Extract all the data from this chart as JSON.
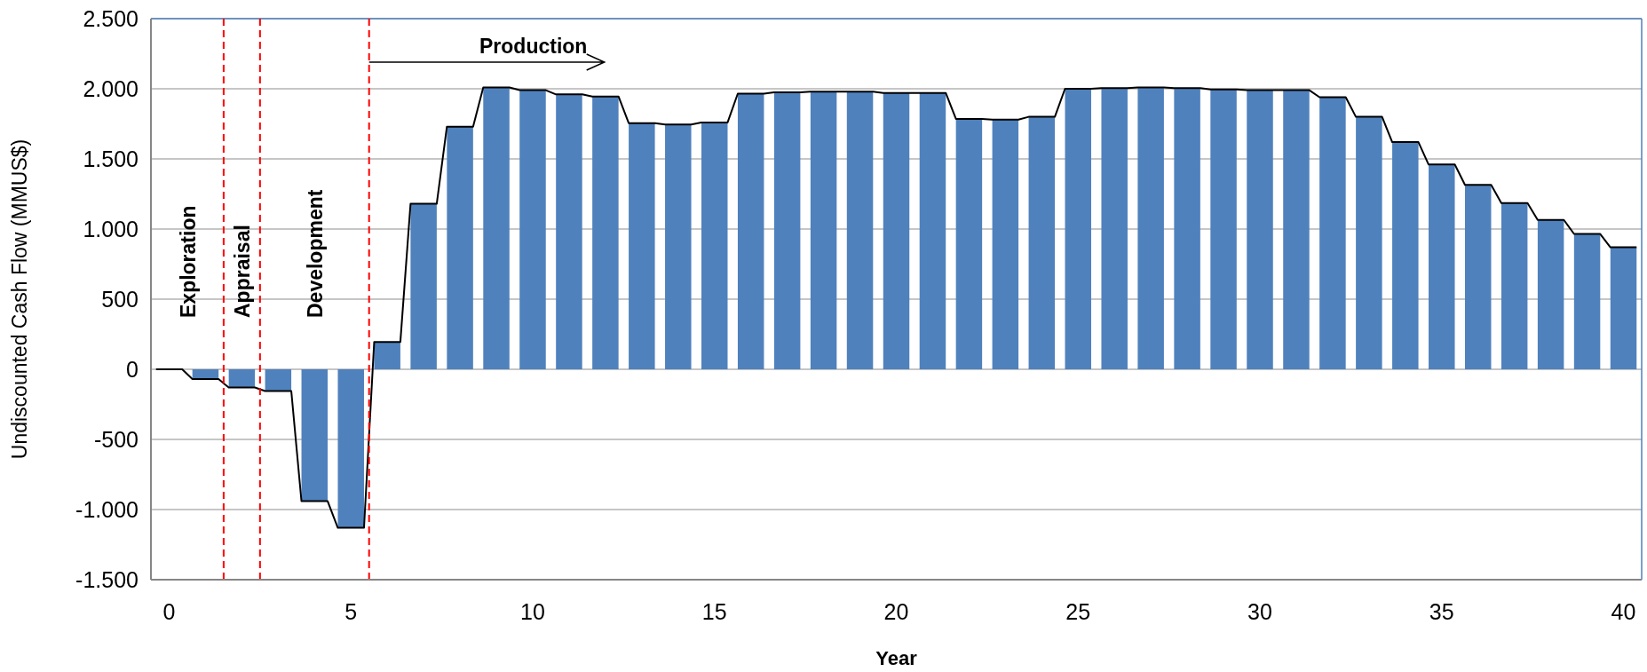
{
  "chart_data": {
    "type": "bar",
    "xlabel": "Year",
    "ylabel": "Undiscounted Cash Flow (MMUS$)",
    "x": [
      0,
      1,
      2,
      3,
      4,
      5,
      6,
      7,
      8,
      9,
      10,
      11,
      12,
      13,
      14,
      15,
      16,
      17,
      18,
      19,
      20,
      21,
      22,
      23,
      24,
      25,
      26,
      27,
      28,
      29,
      30,
      31,
      32,
      33,
      34,
      35,
      36,
      37,
      38,
      39,
      40
    ],
    "series": [
      {
        "color": "#4f81bd",
        "values": [
          0,
          -70,
          -130,
          -155,
          -940,
          -1130,
          195,
          1180,
          1730,
          2010,
          1990,
          1960,
          1945,
          1755,
          1745,
          1760,
          1965,
          1975,
          1980,
          1980,
          1970,
          1970,
          1785,
          1780,
          1800,
          2000,
          2005,
          2010,
          2005,
          1995,
          1990,
          1990,
          1940,
          1800,
          1620,
          1460,
          1315,
          1185,
          1065,
          965,
          870
        ]
      },
      {
        "type": "line",
        "color": "#000000",
        "x": [
          -0.36,
          0.36,
          0.64,
          1.36,
          1.64,
          2.36,
          2.64,
          3.36,
          3.64,
          4.36,
          4.64,
          5.36,
          5.64,
          6.36,
          6.64,
          7.36,
          7.64,
          8.36,
          8.64,
          9.36,
          9.64,
          10.36,
          10.64,
          11.36,
          11.64,
          12.36,
          12.64,
          13.36,
          13.64,
          14.36,
          14.64,
          15.36,
          15.64,
          16.36,
          16.64,
          17.36,
          17.64,
          18.36,
          18.64,
          19.36,
          19.64,
          20.36,
          20.64,
          21.36,
          21.64,
          22.36,
          22.64,
          23.36,
          23.64,
          24.36,
          24.64,
          25.36,
          25.64,
          26.36,
          26.64,
          27.36,
          27.64,
          28.36,
          28.64,
          29.36,
          29.64,
          30.36,
          30.64,
          31.36,
          31.64,
          32.36,
          32.64,
          33.36,
          33.64,
          34.36,
          34.64,
          35.36,
          35.64,
          36.36,
          36.64,
          37.36,
          37.64,
          38.36,
          38.64,
          39.36,
          39.64,
          40.36
        ],
        "values": [
          0,
          0,
          -70,
          -70,
          -130,
          -130,
          -155,
          -155,
          -940,
          -940,
          -1130,
          -1130,
          195,
          195,
          1180,
          1180,
          1730,
          1730,
          2010,
          2010,
          1990,
          1990,
          1960,
          1960,
          1945,
          1945,
          1755,
          1755,
          1745,
          1745,
          1760,
          1760,
          1965,
          1965,
          1975,
          1975,
          1980,
          1980,
          1980,
          1980,
          1970,
          1970,
          1970,
          1970,
          1785,
          1785,
          1780,
          1780,
          1800,
          1800,
          2000,
          2000,
          2005,
          2005,
          2010,
          2010,
          2005,
          2005,
          1995,
          1995,
          1990,
          1990,
          1990,
          1990,
          1940,
          1940,
          1800,
          1800,
          1620,
          1620,
          1460,
          1460,
          1315,
          1315,
          1185,
          1185,
          1065,
          1065,
          965,
          965,
          870,
          870
        ]
      }
    ],
    "xlim": [
      -0.5,
      40.5
    ],
    "xticks": [
      0,
      5,
      10,
      15,
      20,
      25,
      30,
      35,
      40
    ],
    "ylim": [
      -1500,
      2500
    ],
    "yticks": [
      {
        "value": -1500,
        "label": "-1.500"
      },
      {
        "value": -1000,
        "label": "-1.000"
      },
      -500,
      0,
      500,
      {
        "value": 1000,
        "label": "1.000"
      },
      {
        "value": 1500,
        "label": "1.500"
      },
      {
        "value": 2000,
        "label": "2.000"
      },
      {
        "value": 2500,
        "label": "2.500"
      }
    ],
    "grid": "y",
    "marker": "none",
    "line_style": "solid",
    "ref_lines": [
      {
        "axis": "x",
        "value": 1.5,
        "color": "#ff0000",
        "line_style": "dashed"
      },
      {
        "axis": "x",
        "value": 2.5,
        "color": "#ff0000",
        "line_style": "dashed"
      },
      {
        "axis": "x",
        "value": 5.5,
        "color": "#ff0000",
        "line_style": "dashed"
      }
    ],
    "annotations": [
      "Exploration",
      "Appraisal",
      "Development",
      {
        "text": "Production",
        "x": 5.5,
        "y": 2190
      }
    ]
  }
}
